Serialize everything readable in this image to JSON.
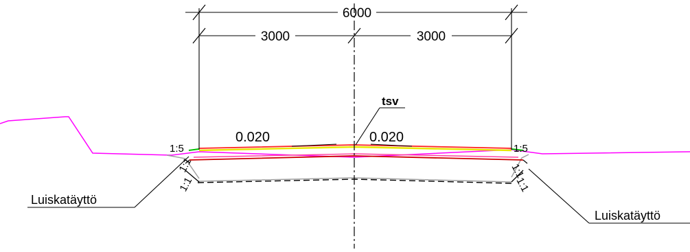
{
  "dimensions": {
    "total": "6000",
    "left_half": "3000",
    "right_half": "3000"
  },
  "slopes": {
    "left_cross_fall": "0.020",
    "right_cross_fall": "0.020",
    "left_side_slope": "1:5",
    "right_side_slope": "1:5",
    "left_fill_slope_upper": "1:1",
    "left_fill_slope_lower": "1:1",
    "right_fill_slope_upper": "1:1",
    "right_fill_slope_lower": "1:1"
  },
  "labels": {
    "centerline_layer": "tsv",
    "left_fill": "Luiskatäyttö",
    "right_fill": "Luiskatäyttö"
  },
  "colors": {
    "ground_line": "#ff00ff",
    "surface_top": "#ff2020",
    "surface_layer": "#e8e800",
    "shoulder": "#00c000",
    "subgrade": "#cc0000",
    "pink_layer": "#ff40a0",
    "formation": "#a0a0a0",
    "dimension_lines": "#000000"
  }
}
